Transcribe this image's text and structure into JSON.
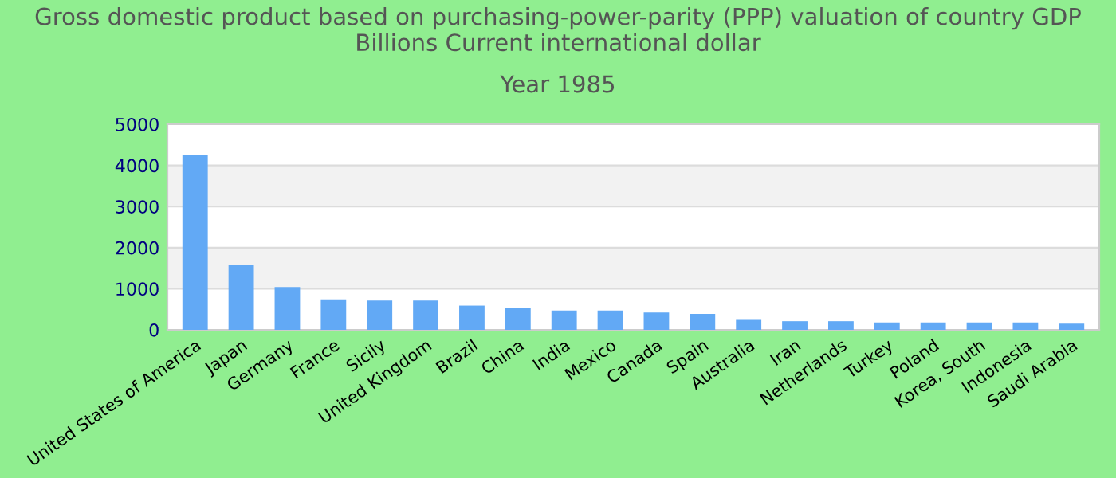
{
  "chart_data": {
    "type": "bar",
    "title": "Gross domestic product based on purchasing-power-parity (PPP) valuation of country GDP Billions Current international dollar",
    "subtitle": "Year 1985",
    "categories": [
      "United States of America",
      "Japan",
      "Germany",
      "France",
      "Sicily",
      "United Kingdom",
      "Brazil",
      "China",
      "India",
      "Mexico",
      "Canada",
      "Spain",
      "Australia",
      "Iran",
      "Netherlands",
      "Turkey",
      "Poland",
      "Korea, South",
      "Indonesia",
      "Saudi Arabia"
    ],
    "values": [
      4250,
      1570,
      1040,
      740,
      710,
      710,
      590,
      530,
      470,
      470,
      420,
      390,
      240,
      210,
      210,
      180,
      180,
      180,
      180,
      150
    ],
    "color": "#62a9f5",
    "ylim": [
      0,
      5000
    ],
    "yticks": [
      0,
      1000,
      2000,
      3000,
      4000,
      5000
    ],
    "grid": "y",
    "legend": false
  }
}
